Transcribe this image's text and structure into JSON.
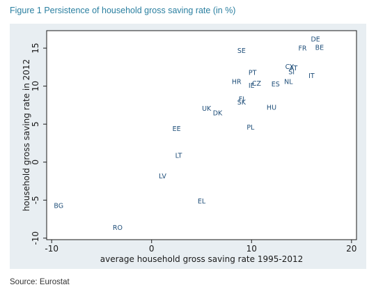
{
  "figure": {
    "title": "Figure 1 Persistence of household gross saving rate (in %)",
    "source": "Source: Eurostat"
  },
  "colors": {
    "background": "#ffffff",
    "panel": "#e8eef2",
    "plot_region": "#ffffff",
    "title": "#2a7fa0",
    "point_label": "#1f4e79"
  },
  "chart_data": {
    "type": "scatter",
    "xlabel": "average household gross saving rate 1995-2012",
    "ylabel": "household gross saving rate in 2012",
    "xlim": [
      -10.5,
      20.5
    ],
    "ylim": [
      -10.2,
      17.3
    ],
    "xticks": [
      -10,
      0,
      10,
      20
    ],
    "yticks": [
      -10,
      -5,
      0,
      5,
      10,
      15
    ],
    "xtick_labels": [
      "-10",
      "0",
      "10",
      "20"
    ],
    "ytick_labels": [
      "-10",
      "-5",
      "0",
      "5",
      "10",
      "15"
    ],
    "grid": false,
    "legend": "none",
    "points": [
      {
        "label": "DE",
        "x": 16.4,
        "y": 16.2
      },
      {
        "label": "FR",
        "x": 15.1,
        "y": 15.0
      },
      {
        "label": "BE",
        "x": 16.8,
        "y": 15.1
      },
      {
        "label": "SE",
        "x": 9.0,
        "y": 14.7
      },
      {
        "label": "CY",
        "x": 13.8,
        "y": 12.6
      },
      {
        "label": "AT",
        "x": 14.2,
        "y": 12.4
      },
      {
        "label": "SI",
        "x": 14.0,
        "y": 11.9
      },
      {
        "label": "PT",
        "x": 10.1,
        "y": 11.8
      },
      {
        "label": "IT",
        "x": 16.0,
        "y": 11.4
      },
      {
        "label": "HR",
        "x": 8.5,
        "y": 10.6
      },
      {
        "label": "CZ",
        "x": 10.5,
        "y": 10.4
      },
      {
        "label": "IE",
        "x": 10.0,
        "y": 10.1
      },
      {
        "label": "ES",
        "x": 12.4,
        "y": 10.3
      },
      {
        "label": "NL",
        "x": 13.7,
        "y": 10.6
      },
      {
        "label": "FI",
        "x": 9.0,
        "y": 8.3
      },
      {
        "label": "SK",
        "x": 9.0,
        "y": 7.9
      },
      {
        "label": "HU",
        "x": 12.0,
        "y": 7.2
      },
      {
        "label": "UK",
        "x": 5.5,
        "y": 7.1
      },
      {
        "label": "DK",
        "x": 6.6,
        "y": 6.5
      },
      {
        "label": "PL",
        "x": 9.9,
        "y": 4.6
      },
      {
        "label": "EE",
        "x": 2.5,
        "y": 4.4
      },
      {
        "label": "LT",
        "x": 2.7,
        "y": 0.9
      },
      {
        "label": "LV",
        "x": 1.1,
        "y": -1.8
      },
      {
        "label": "EL",
        "x": 5.0,
        "y": -5.1
      },
      {
        "label": "BG",
        "x": -9.3,
        "y": -5.7
      },
      {
        "label": "RO",
        "x": -3.4,
        "y": -8.6
      }
    ]
  }
}
